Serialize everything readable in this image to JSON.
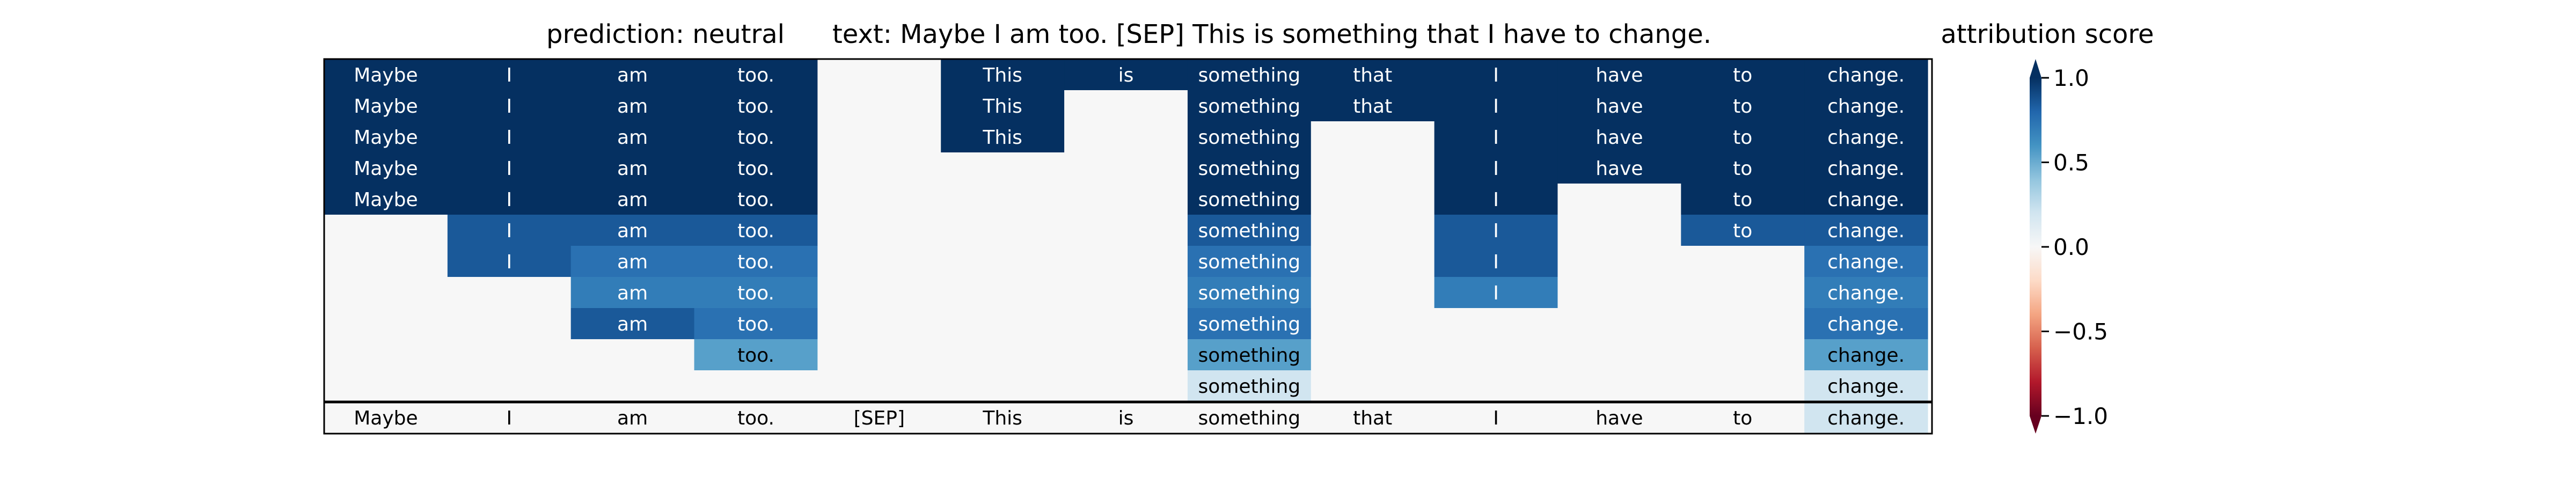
{
  "chart_data": {
    "type": "heatmap",
    "title_prediction": "prediction:  neutral",
    "title_text": "text:  Maybe I am too. [SEP] This is something that I have to change.",
    "colorbar_label": "attribution score",
    "colorbar_range": [
      -1.0,
      1.0
    ],
    "colorbar_ticks": [
      "1.0",
      "0.5",
      "0.0",
      "−0.5",
      "−1.0"
    ],
    "colorbar_tick_values": [
      1.0,
      0.5,
      0.0,
      -0.5,
      -1.0
    ],
    "tokens": [
      "Maybe",
      "I",
      "am",
      "too.",
      "[SEP]",
      "This",
      "is",
      "something",
      "that",
      "I",
      "have",
      "to",
      "change."
    ],
    "rows": [
      [
        1.0,
        1.0,
        1.0,
        1.0,
        0.0,
        1.0,
        1.0,
        1.0,
        1.0,
        1.0,
        1.0,
        1.0,
        1.0
      ],
      [
        1.0,
        1.0,
        1.0,
        1.0,
        0.0,
        1.0,
        0.0,
        1.0,
        1.0,
        1.0,
        1.0,
        1.0,
        1.0
      ],
      [
        1.0,
        1.0,
        1.0,
        1.0,
        0.0,
        1.0,
        0.0,
        1.0,
        0.0,
        1.0,
        1.0,
        1.0,
        1.0
      ],
      [
        1.0,
        1.0,
        1.0,
        1.0,
        0.0,
        0.0,
        0.0,
        1.0,
        0.0,
        1.0,
        1.0,
        1.0,
        1.0
      ],
      [
        1.0,
        1.0,
        1.0,
        1.0,
        0.0,
        0.0,
        0.0,
        1.0,
        0.0,
        1.0,
        0.0,
        1.0,
        1.0
      ],
      [
        0.0,
        0.85,
        0.85,
        0.85,
        0.0,
        0.0,
        0.0,
        0.85,
        0.0,
        0.85,
        0.0,
        0.85,
        0.85
      ],
      [
        0.0,
        0.85,
        0.75,
        0.75,
        0.0,
        0.0,
        0.0,
        0.75,
        0.0,
        0.85,
        0.0,
        0.0,
        0.75
      ],
      [
        0.0,
        0.0,
        0.7,
        0.7,
        0.0,
        0.0,
        0.0,
        0.7,
        0.0,
        0.7,
        0.0,
        0.0,
        0.7
      ],
      [
        0.0,
        0.0,
        0.85,
        0.75,
        0.0,
        0.0,
        0.0,
        0.75,
        0.0,
        0.0,
        0.0,
        0.0,
        0.75
      ],
      [
        0.0,
        0.0,
        0.0,
        0.55,
        0.0,
        0.0,
        0.0,
        0.55,
        0.0,
        0.0,
        0.0,
        0.0,
        0.55
      ],
      [
        0.0,
        0.0,
        0.0,
        0.0,
        0.0,
        0.0,
        0.0,
        0.2,
        0.0,
        0.0,
        0.0,
        0.0,
        0.2
      ]
    ],
    "footer_row": [
      0.0,
      0.0,
      0.0,
      0.0,
      0.0,
      0.0,
      0.0,
      0.0,
      0.0,
      0.0,
      0.0,
      0.0,
      0.2
    ]
  }
}
